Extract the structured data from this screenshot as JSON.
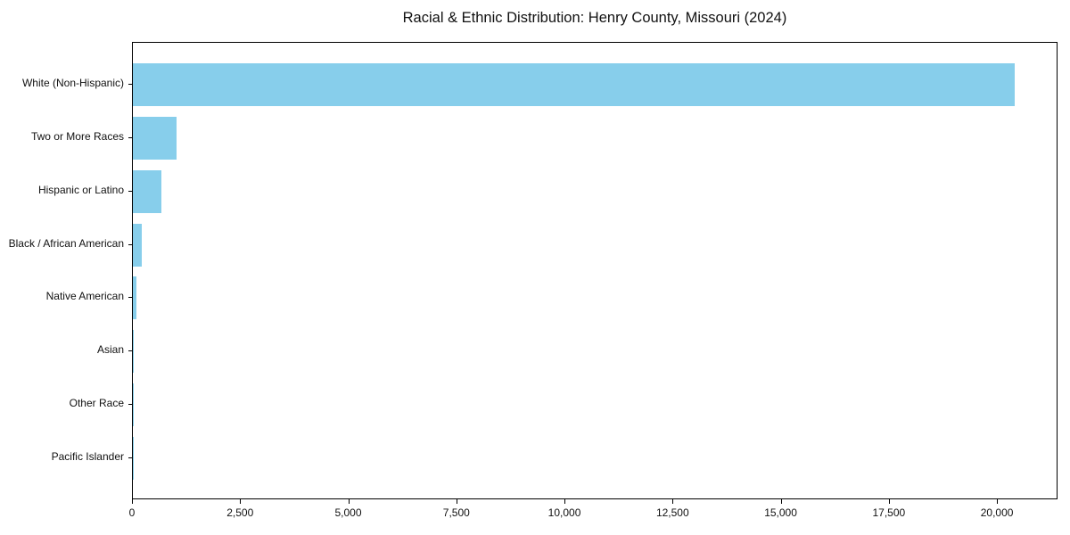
{
  "chart_data": {
    "type": "bar",
    "orientation": "horizontal",
    "title": "Racial & Ethnic Distribution: Henry County, Missouri (2024)",
    "categories": [
      "White (Non-Hispanic)",
      "Two or More Races",
      "Hispanic or Latino",
      "Black / African American",
      "Native American",
      "Asian",
      "Other Race",
      "Pacific Islander"
    ],
    "values": [
      20380,
      1010,
      670,
      205,
      85,
      30,
      12,
      4
    ],
    "xlabel": "",
    "ylabel": "",
    "xlim": [
      0,
      21400
    ],
    "x_ticks": [
      0,
      2500,
      5000,
      7500,
      10000,
      12500,
      15000,
      17500,
      20000
    ],
    "x_tick_labels": [
      "0",
      "2,500",
      "5,000",
      "7,500",
      "10,000",
      "12,500",
      "15,000",
      "17,500",
      "20,000"
    ],
    "bar_color": "#87CEEB",
    "axis_color": "#000000",
    "text_color": "#111111",
    "background_color": "#ffffff",
    "grid": false,
    "legend_position": "none"
  }
}
